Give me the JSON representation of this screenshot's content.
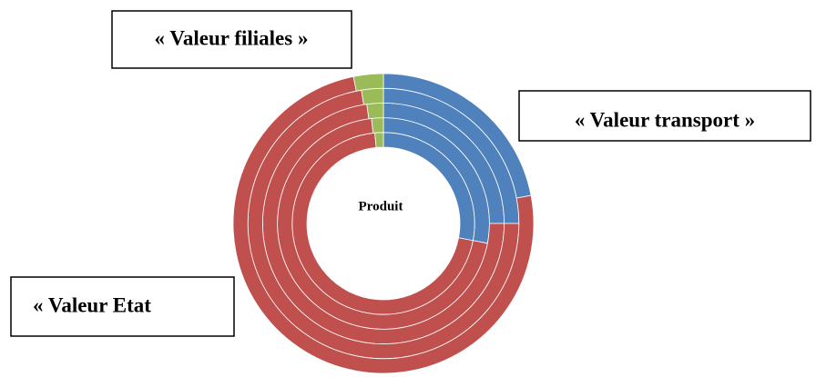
{
  "chart_data": {
    "type": "multi-donut",
    "center_label": "Produit",
    "categories": [
      "« Valeur transport »",
      "« Valeur Etat",
      "« Valeur filiales »"
    ],
    "colors": [
      "#4f81bd",
      "#c0504d",
      "#9bbb59"
    ],
    "rings": [
      {
        "values": [
          28,
          70.5,
          1.5
        ]
      },
      {
        "values": [
          28,
          70.2,
          1.8
        ]
      },
      {
        "values": [
          25,
          72.8,
          2.2
        ]
      },
      {
        "values": [
          25,
          72.4,
          2.6
        ]
      },
      {
        "values": [
          22,
          74.8,
          3.2
        ]
      }
    ]
  }
}
